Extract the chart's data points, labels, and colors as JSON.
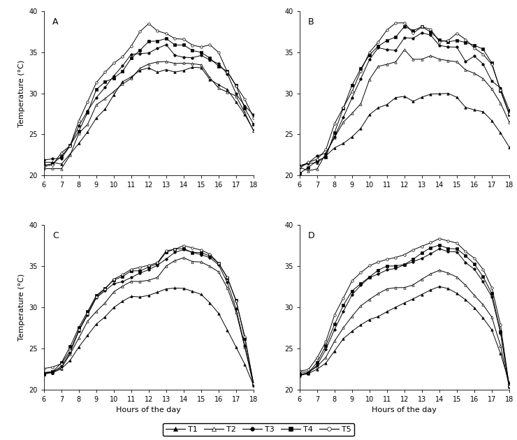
{
  "xlim": [
    6,
    18
  ],
  "ylim": [
    20,
    40
  ],
  "xticks": [
    6,
    7,
    8,
    9,
    10,
    11,
    12,
    13,
    14,
    15,
    16,
    17,
    18
  ],
  "yticks": [
    20,
    25,
    30,
    35,
    40
  ],
  "xlabel": "Hours of the day",
  "ylabel_A": "Temperature (°C)",
  "panel_labels": [
    "A",
    "B",
    "C",
    "D"
  ],
  "legend_labels": [
    "T1",
    "T2",
    "T3",
    "T4",
    "T5"
  ]
}
